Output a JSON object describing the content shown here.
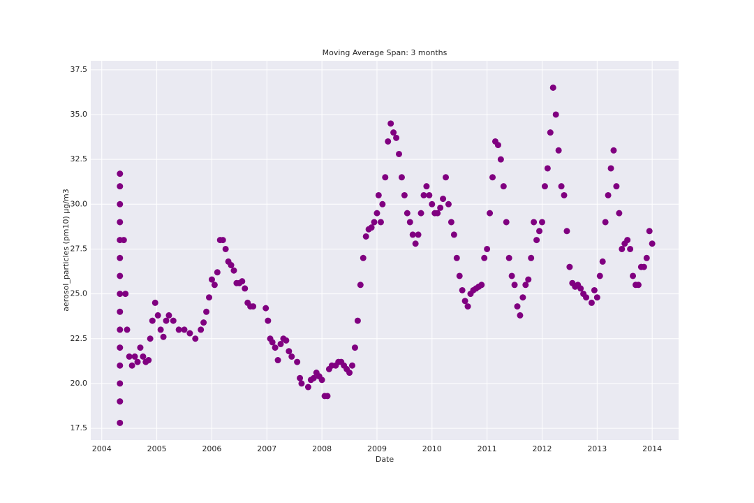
{
  "chart_data": {
    "type": "scatter",
    "title": "Moving Average Span: 3 months",
    "x_label": "Date",
    "y_label": "aerosol_particles (pm10) μg/m3",
    "color": "#800080",
    "grid": true,
    "xlim": [
      2003.8,
      2014.48
    ],
    "ylim": [
      16.84,
      38.0
    ],
    "xticks": [
      2004,
      2005,
      2006,
      2007,
      2008,
      2009,
      2010,
      2011,
      2012,
      2013,
      2014
    ],
    "yticks": [
      17.5,
      {
        "value": 20,
        "label": "20.0"
      },
      22.5,
      {
        "value": 25,
        "label": "25.0"
      },
      27.5,
      {
        "value": 30,
        "label": "30.0"
      },
      32.5,
      {
        "value": 35,
        "label": "35.0"
      },
      37.5
    ],
    "x": [
      2004.33,
      2004.33,
      2004.33,
      2004.33,
      2004.33,
      2004.33,
      2004.33,
      2004.33,
      2004.33,
      2004.33,
      2004.33,
      2004.33,
      2004.33,
      2004.33,
      2004.33,
      2004.4,
      2004.43,
      2004.46,
      2004.5,
      2004.55,
      2004.6,
      2004.65,
      2004.7,
      2004.75,
      2004.8,
      2004.85,
      2004.88,
      2004.92,
      2004.97,
      2005.02,
      2005.07,
      2005.12,
      2005.17,
      2005.22,
      2005.3,
      2005.4,
      2005.5,
      2005.6,
      2005.7,
      2005.8,
      2005.85,
      2005.9,
      2005.95,
      2006.0,
      2006.05,
      2006.1,
      2006.15,
      2006.2,
      2006.25,
      2006.3,
      2006.35,
      2006.4,
      2006.45,
      2006.5,
      2006.55,
      2006.6,
      2006.65,
      2006.7,
      2006.75,
      2006.98,
      2007.02,
      2007.06,
      2007.1,
      2007.15,
      2007.2,
      2007.25,
      2007.3,
      2007.35,
      2007.4,
      2007.45,
      2007.55,
      2007.6,
      2007.63,
      2007.75,
      2007.8,
      2007.85,
      2007.9,
      2007.95,
      2008.0,
      2008.05,
      2008.1,
      2008.13,
      2008.18,
      2008.25,
      2008.3,
      2008.35,
      2008.4,
      2008.45,
      2008.5,
      2008.55,
      2008.6,
      2008.65,
      2008.7,
      2008.75,
      2008.8,
      2008.85,
      2008.9,
      2008.95,
      2009.0,
      2009.03,
      2009.07,
      2009.1,
      2009.15,
      2009.2,
      2009.25,
      2009.3,
      2009.35,
      2009.4,
      2009.45,
      2009.5,
      2009.55,
      2009.6,
      2009.65,
      2009.7,
      2009.75,
      2009.8,
      2009.85,
      2009.9,
      2009.95,
      2010.0,
      2010.05,
      2010.1,
      2010.15,
      2010.2,
      2010.25,
      2010.3,
      2010.35,
      2010.4,
      2010.45,
      2010.5,
      2010.55,
      2010.6,
      2010.65,
      2010.7,
      2010.75,
      2010.8,
      2010.85,
      2010.9,
      2010.95,
      2011.0,
      2011.05,
      2011.1,
      2011.15,
      2011.2,
      2011.25,
      2011.3,
      2011.35,
      2011.4,
      2011.45,
      2011.5,
      2011.55,
      2011.6,
      2011.65,
      2011.7,
      2011.75,
      2011.8,
      2011.85,
      2011.9,
      2011.95,
      2012.0,
      2012.05,
      2012.1,
      2012.15,
      2012.2,
      2012.25,
      2012.3,
      2012.35,
      2012.4,
      2012.45,
      2012.5,
      2012.55,
      2012.6,
      2012.65,
      2012.7,
      2012.75,
      2012.8,
      2012.9,
      2012.95,
      2013.0,
      2013.05,
      2013.1,
      2013.15,
      2013.2,
      2013.25,
      2013.3,
      2013.35,
      2013.4,
      2013.45,
      2013.5,
      2013.55,
      2013.6,
      2013.65,
      2013.7,
      2013.75,
      2013.8,
      2013.85,
      2013.9,
      2013.95,
      2014.0
    ],
    "values": [
      17.8,
      19,
      20,
      21,
      22,
      23,
      24,
      25,
      26,
      27,
      28,
      29,
      30,
      31,
      31.7,
      28,
      25,
      23,
      21.5,
      21,
      21.5,
      21.2,
      22,
      21.5,
      21.2,
      21.3,
      22.5,
      23.5,
      24.5,
      23.8,
      23,
      22.6,
      23.5,
      23.8,
      23.5,
      23.0,
      23.0,
      22.8,
      22.5,
      23.0,
      23.4,
      24.0,
      24.8,
      25.8,
      25.5,
      26.2,
      28.0,
      28.0,
      27.5,
      26.8,
      26.6,
      26.3,
      25.6,
      25.6,
      25.7,
      25.3,
      24.5,
      24.3,
      24.3,
      24.2,
      23.5,
      22.5,
      22.3,
      22.0,
      21.3,
      22.2,
      22.5,
      22.4,
      21.8,
      21.5,
      21.2,
      20.3,
      20.0,
      19.8,
      20.2,
      20.3,
      20.6,
      20.4,
      20.2,
      19.3,
      19.3,
      20.8,
      21.0,
      21.0,
      21.2,
      21.2,
      21.0,
      20.8,
      20.6,
      21.0,
      22.0,
      23.5,
      25.5,
      27.0,
      28.2,
      28.6,
      28.7,
      29.0,
      29.5,
      30.5,
      29.0,
      30.0,
      31.5,
      33.5,
      34.5,
      34.0,
      33.7,
      32.8,
      31.5,
      30.5,
      29.5,
      29.0,
      28.3,
      27.8,
      28.3,
      29.5,
      30.5,
      31.0,
      30.5,
      30.0,
      29.5,
      29.5,
      29.8,
      30.3,
      31.5,
      30.0,
      29.0,
      28.3,
      27.0,
      26.0,
      25.2,
      24.6,
      24.3,
      25.0,
      25.2,
      25.3,
      25.4,
      25.5,
      27.0,
      27.5,
      29.5,
      31.5,
      33.5,
      33.3,
      32.5,
      31.0,
      29.0,
      27.0,
      26.0,
      25.5,
      24.3,
      23.8,
      24.8,
      25.5,
      25.8,
      27.0,
      29.0,
      28.0,
      28.5,
      29.0,
      31.0,
      32.0,
      34.0,
      36.5,
      35.0,
      33.0,
      31.0,
      30.5,
      28.5,
      26.5,
      25.6,
      25.4,
      25.5,
      25.3,
      25.0,
      24.8,
      24.5,
      25.2,
      24.8,
      26.0,
      26.8,
      29.0,
      30.5,
      32.0,
      33.0,
      31.0,
      29.5,
      27.5,
      27.8,
      28.0,
      27.5,
      26.0,
      25.5,
      25.5,
      26.5,
      26.5,
      27.0,
      28.5,
      27.8
    ]
  }
}
